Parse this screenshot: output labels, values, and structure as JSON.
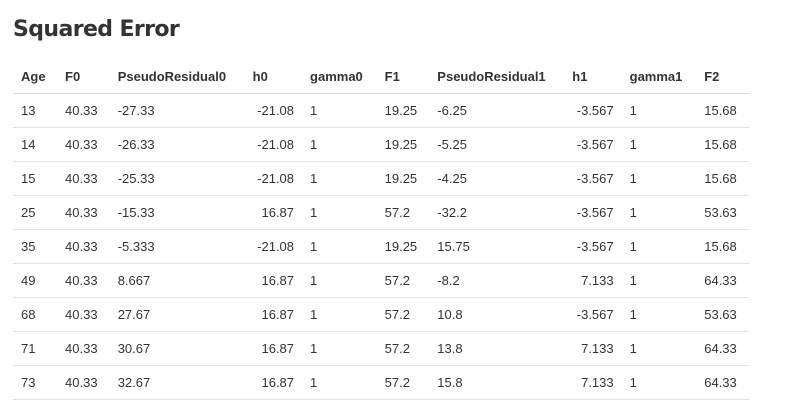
{
  "title": "Squared Error",
  "table": {
    "columns": [
      "Age",
      "F0",
      "PseudoResidual0",
      "h0",
      "gamma0",
      "F1",
      "PseudoResidual1",
      "h1",
      "gamma1",
      "F2"
    ],
    "rows": [
      [
        "13",
        "40.33",
        "-27.33",
        "-21.08",
        "1",
        "19.25",
        "-6.25",
        "-3.567",
        "1",
        "15.68"
      ],
      [
        "14",
        "40.33",
        "-26.33",
        "-21.08",
        "1",
        "19.25",
        "-5.25",
        "-3.567",
        "1",
        "15.68"
      ],
      [
        "15",
        "40.33",
        "-25.33",
        "-21.08",
        "1",
        "19.25",
        "-4.25",
        "-3.567",
        "1",
        "15.68"
      ],
      [
        "25",
        "40.33",
        "-15.33",
        "16.87",
        "1",
        "57.2",
        "-32.2",
        "-3.567",
        "1",
        "53.63"
      ],
      [
        "35",
        "40.33",
        "-5.333",
        "-21.08",
        "1",
        "19.25",
        "15.75",
        "-3.567",
        "1",
        "15.68"
      ],
      [
        "49",
        "40.33",
        "8.667",
        "16.87",
        "1",
        "57.2",
        "-8.2",
        "7.133",
        "1",
        "64.33"
      ],
      [
        "68",
        "40.33",
        "27.67",
        "16.87",
        "1",
        "57.2",
        "10.8",
        "-3.567",
        "1",
        "53.63"
      ],
      [
        "71",
        "40.33",
        "30.67",
        "16.87",
        "1",
        "57.2",
        "13.8",
        "7.133",
        "1",
        "64.33"
      ],
      [
        "73",
        "40.33",
        "32.67",
        "16.87",
        "1",
        "57.2",
        "15.8",
        "7.133",
        "1",
        "64.33"
      ]
    ]
  }
}
